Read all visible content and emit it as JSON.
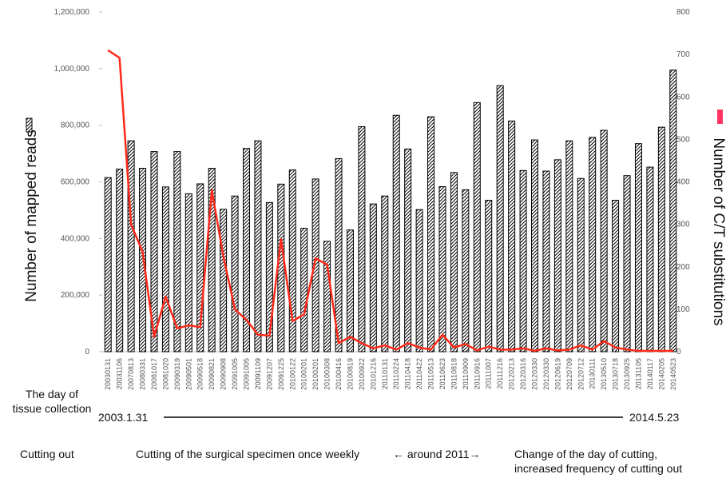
{
  "chart_data": {
    "type": "bar_line",
    "y_label": "Number of mapped reads",
    "y2_label": "Number of C/T substitutions",
    "categories": [
      "20030131",
      "20031106",
      "20070813",
      "20080331",
      "20081017",
      "20081020",
      "20090319",
      "20090501",
      "20090518",
      "20090821",
      "20090908",
      "20091005",
      "20091005",
      "20091109",
      "20091207",
      "20091225",
      "20100122",
      "20100201",
      "20100201",
      "20100308",
      "20100416",
      "20100819",
      "20100922",
      "20101216",
      "20110131",
      "20110224",
      "20110418",
      "20110422",
      "20110513",
      "20110623",
      "20110818",
      "20110909",
      "20110916",
      "20111007",
      "20111216",
      "20120213",
      "20120316",
      "20120330",
      "20120330",
      "20120619",
      "20120709",
      "20120712",
      "20130111",
      "20130510",
      "20130718",
      "20130925",
      "20131105",
      "20140117",
      "20140205",
      "20140523"
    ],
    "series": [
      {
        "name": "Number of mapped reads",
        "type": "bar",
        "color": "#000000",
        "values": [
          615000,
          645000,
          745000,
          648000,
          707000,
          582000,
          707000,
          558000,
          593000,
          648000,
          503000,
          550000,
          718000,
          745000,
          527000,
          592000,
          642000,
          436000,
          610000,
          390000,
          682000,
          430000,
          795000,
          522000,
          550000,
          835000,
          716000,
          502000,
          830000,
          583000,
          633000,
          572000,
          880000,
          535000,
          940000,
          815000,
          640000,
          748000,
          638000,
          678000,
          745000,
          612000,
          757000,
          782000,
          535000,
          622000,
          735000,
          652000,
          793000,
          995000
        ]
      },
      {
        "name": "Number of C/T substitutions",
        "type": "line",
        "axis": "y2",
        "color": "#ff2a1a",
        "values": [
          710,
          692,
          300,
          235,
          35,
          130,
          55,
          62,
          58,
          380,
          225,
          100,
          75,
          40,
          38,
          265,
          72,
          88,
          220,
          205,
          20,
          35,
          20,
          8,
          15,
          5,
          20,
          10,
          5,
          40,
          10,
          18,
          3,
          12,
          5,
          5,
          8,
          2,
          8,
          3,
          5,
          15,
          5,
          25,
          10,
          5,
          2,
          2,
          2,
          2
        ]
      }
    ],
    "ylim": [
      0,
      1200000
    ],
    "yticks": [
      0,
      {
        "value": 200000,
        "label": "200,000"
      },
      {
        "value": 400000,
        "label": "400,000"
      },
      {
        "value": 600000,
        "label": "600,000"
      },
      {
        "value": 800000,
        "label": "800,000"
      },
      {
        "value": 1000000,
        "label": "1,000,000"
      },
      {
        "value": 1200000,
        "label": "1,200,000"
      }
    ],
    "y2lim": [
      0,
      800
    ],
    "y2ticks": [
      0,
      100,
      200,
      300,
      400,
      500,
      600,
      700,
      800
    ],
    "annotations": {
      "collection_label": [
        "The day of",
        "tissue collection"
      ],
      "start_date": "2003.1.31",
      "end_date": "2014.5.23",
      "cutting_label": "Cutting out",
      "cutting_before": "Cutting of the surgical specimen once weekly",
      "cutting_around": "←  around 2011→",
      "cutting_after": [
        "Change of the day of cutting,",
        "increased frequency of cutting out"
      ]
    }
  }
}
